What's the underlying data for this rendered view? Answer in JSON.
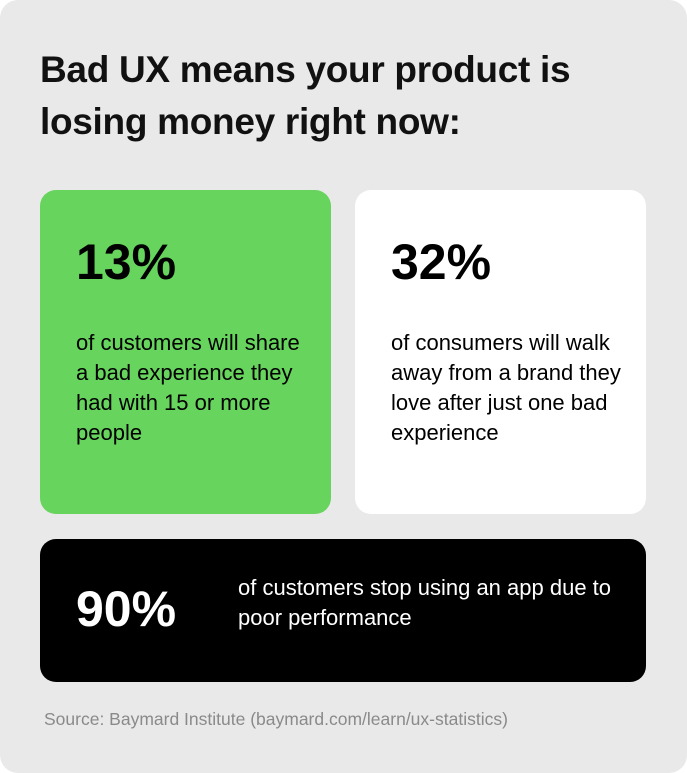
{
  "title": "Bad UX means your product is losing money right now:",
  "colors": {
    "background": "#e9e9e9",
    "green": "#66d45d",
    "white": "#ffffff",
    "black": "#000000"
  },
  "stats": [
    {
      "value": "13%",
      "text": "of customers will share a bad experience they had with 15 or more people"
    },
    {
      "value": "32%",
      "text": "of consumers will walk away from a brand they love after just one bad experience"
    },
    {
      "value": "90%",
      "text": "of customers stop using an app due to poor performance"
    }
  ],
  "source": "Source: Baymard Institute (baymard.com/learn/ux-statistics)"
}
